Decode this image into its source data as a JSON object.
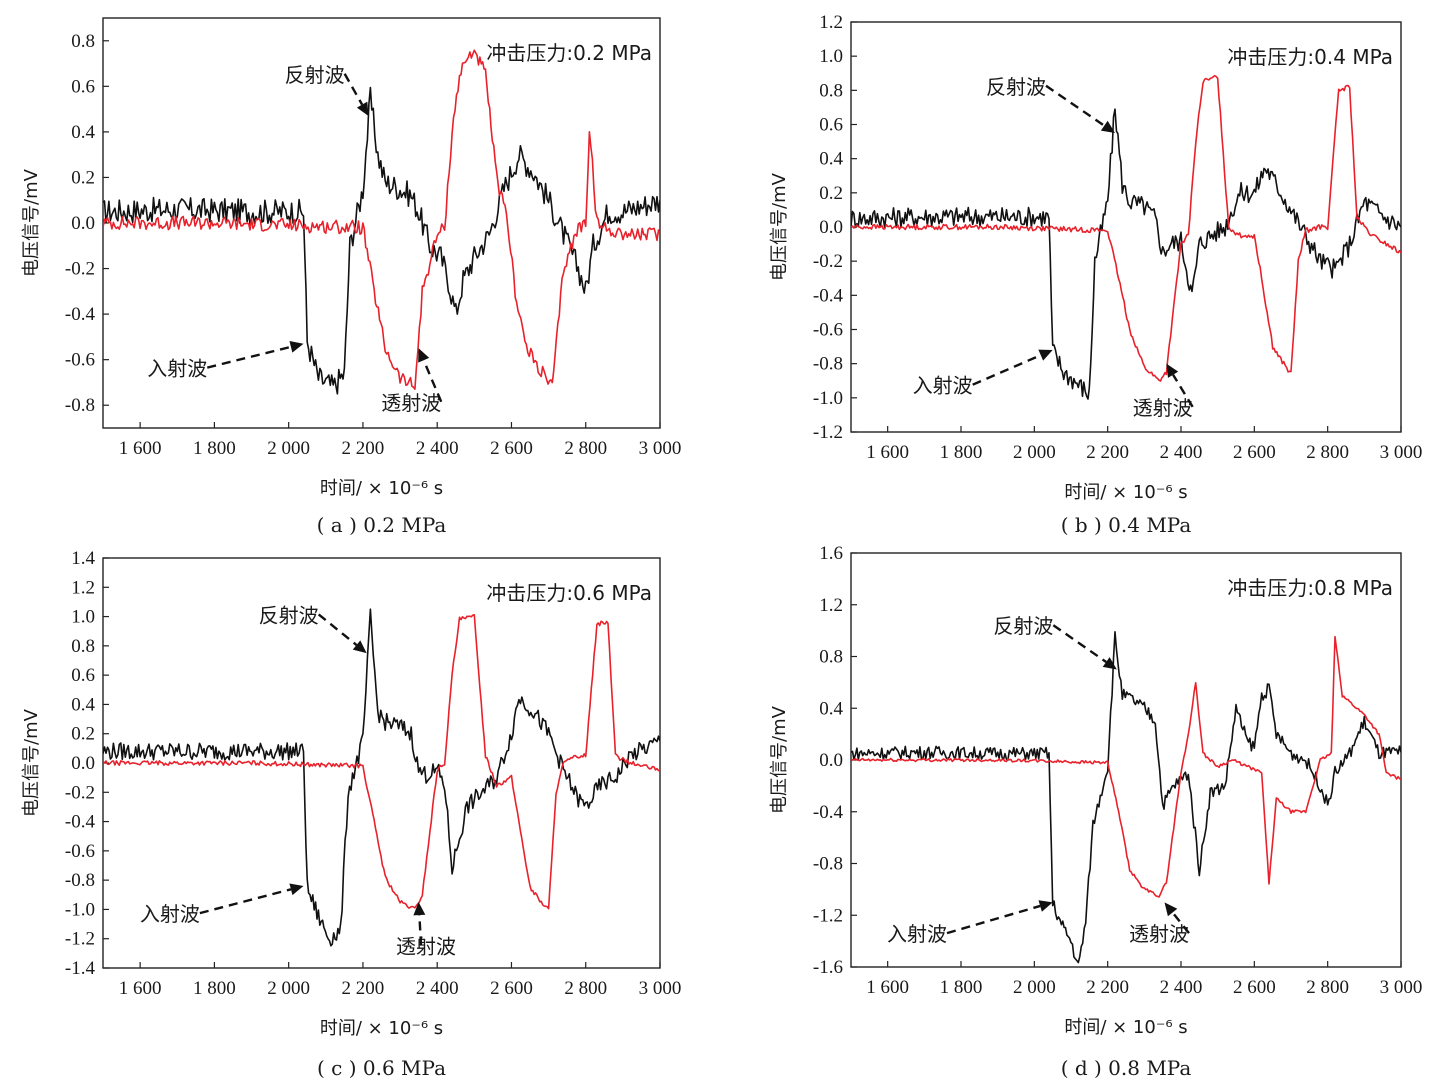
{
  "colors": {
    "reflected_black": "#111111",
    "transmitted_red": "#e8212b",
    "frame": "#222222"
  },
  "chart_data": [
    {
      "type": "line",
      "caption": "( a ) 0.2 MPa",
      "pressure_label": "冲击压力:0.2 MPa",
      "xlabel": "时间/ × 10⁻⁶ s",
      "ylabel": "电压信号/mV",
      "xlim": [
        1500,
        3000
      ],
      "ylim": [
        -0.9,
        0.9
      ],
      "x_ticks": [
        1600,
        1800,
        2000,
        2200,
        2400,
        2600,
        2800,
        3000
      ],
      "x_tick_labels": [
        "1 600",
        "1 800",
        "2 000",
        "2 200",
        "2 400",
        "2 600",
        "2 800",
        "3 000"
      ],
      "y_ticks": [
        -0.8,
        -0.6,
        -0.4,
        -0.2,
        0.0,
        0.2,
        0.4,
        0.6,
        0.8
      ],
      "y_tick_labels": [
        "-0.8",
        "-0.6",
        "-0.4",
        "-0.2",
        "0.0",
        "0.2",
        "0.4",
        "0.6",
        "0.8"
      ],
      "annotations": [
        {
          "text": "反射波",
          "tx": 2070,
          "ty": 0.62,
          "ax": 2215,
          "ay": 0.47
        },
        {
          "text": "入射波",
          "tx": 1700,
          "ty": -0.67,
          "ax": 2040,
          "ay": -0.53
        },
        {
          "text": "透射波",
          "tx": 2330,
          "ty": -0.82,
          "ax": 2350,
          "ay": -0.55
        }
      ],
      "series": [
        {
          "color": "black",
          "x": [
            1500,
            1700,
            1900,
            2040,
            2050,
            2080,
            2120,
            2150,
            2165,
            2200,
            2220,
            2240,
            2260,
            2300,
            2330,
            2350,
            2380,
            2410,
            2430,
            2450,
            2470,
            2500,
            2540,
            2580,
            2620,
            2660,
            2700,
            2740,
            2780,
            2800,
            2820,
            2860,
            2900,
            2960,
            3000
          ],
          "y": [
            0.05,
            0.06,
            0.05,
            0.05,
            -0.52,
            -0.68,
            -0.72,
            -0.66,
            -0.1,
            0.15,
            0.55,
            0.3,
            0.18,
            0.15,
            0.12,
            0.05,
            -0.1,
            -0.15,
            -0.25,
            -0.4,
            -0.25,
            -0.15,
            -0.05,
            0.15,
            0.3,
            0.22,
            0.1,
            -0.05,
            -0.2,
            -0.3,
            -0.1,
            0.05,
            0.05,
            0.08,
            0.1
          ]
        },
        {
          "color": "red",
          "x": [
            1500,
            1800,
            2200,
            2230,
            2260,
            2300,
            2340,
            2360,
            2400,
            2420,
            2440,
            2460,
            2480,
            2500,
            2530,
            2560,
            2590,
            2610,
            2640,
            2680,
            2710,
            2740,
            2780,
            2800,
            2810,
            2830,
            2860,
            2920,
            3000
          ],
          "y": [
            0.0,
            0.0,
            -0.02,
            -0.3,
            -0.55,
            -0.68,
            -0.72,
            -0.3,
            -0.05,
            -0.02,
            0.4,
            0.65,
            0.72,
            0.76,
            0.65,
            0.2,
            0.0,
            -0.3,
            -0.55,
            -0.65,
            -0.72,
            -0.2,
            -0.02,
            0.0,
            0.42,
            0.0,
            -0.03,
            -0.05,
            -0.05
          ]
        }
      ]
    },
    {
      "type": "line",
      "caption": "( b ) 0.4 MPa",
      "pressure_label": "冲击压力:0.4 MPa",
      "xlabel": "时间/ × 10⁻⁶ s",
      "ylabel": "电压信号/mV",
      "xlim": [
        1500,
        3000
      ],
      "ylim": [
        -1.2,
        1.2
      ],
      "x_ticks": [
        1600,
        1800,
        2000,
        2200,
        2400,
        2600,
        2800,
        3000
      ],
      "x_tick_labels": [
        "1 600",
        "1 800",
        "2 000",
        "2 200",
        "2 400",
        "2 600",
        "2 800",
        "3 000"
      ],
      "y_ticks": [
        -1.2,
        -1.0,
        -0.8,
        -0.6,
        -0.4,
        -0.2,
        0.0,
        0.2,
        0.4,
        0.6,
        0.8,
        1.0,
        1.2
      ],
      "y_tick_labels": [
        "-1.2",
        "-1.0",
        "-0.8",
        "-0.6",
        "-0.4",
        "-0.2",
        "0.0",
        "0.2",
        "0.4",
        "0.6",
        "0.8",
        "1.0",
        "1.2"
      ],
      "annotations": [
        {
          "text": "反射波",
          "tx": 1950,
          "ty": 0.78,
          "ax": 2220,
          "ay": 0.55
        },
        {
          "text": "入射波",
          "tx": 1750,
          "ty": -0.97,
          "ax": 2050,
          "ay": -0.72
        },
        {
          "text": "透射波",
          "tx": 2350,
          "ty": -1.1,
          "ax": 2360,
          "ay": -0.8
        }
      ],
      "series": [
        {
          "color": "black",
          "x": [
            1500,
            1700,
            1900,
            2040,
            2050,
            2080,
            2120,
            2150,
            2165,
            2200,
            2220,
            2240,
            2260,
            2300,
            2330,
            2350,
            2370,
            2400,
            2430,
            2450,
            2480,
            2520,
            2560,
            2600,
            2630,
            2660,
            2700,
            2740,
            2780,
            2820,
            2860,
            2900,
            2960,
            3000
          ],
          "y": [
            0.05,
            0.06,
            0.06,
            0.06,
            -0.72,
            -0.85,
            -0.92,
            -0.98,
            -0.2,
            0.15,
            0.7,
            0.25,
            0.15,
            0.12,
            0.05,
            -0.15,
            -0.1,
            -0.08,
            -0.4,
            -0.1,
            -0.05,
            0.0,
            0.2,
            0.2,
            0.35,
            0.25,
            0.1,
            -0.05,
            -0.2,
            -0.25,
            -0.1,
            0.15,
            0.05,
            0.0
          ]
        },
        {
          "color": "red",
          "x": [
            1500,
            1900,
            2200,
            2230,
            2260,
            2300,
            2340,
            2360,
            2400,
            2420,
            2440,
            2460,
            2500,
            2530,
            2560,
            2600,
            2620,
            2650,
            2680,
            2700,
            2720,
            2740,
            2780,
            2800,
            2830,
            2860,
            2880,
            2920,
            3000
          ],
          "y": [
            0.0,
            0.0,
            -0.02,
            -0.3,
            -0.6,
            -0.82,
            -0.9,
            -0.85,
            -0.1,
            -0.05,
            0.5,
            0.85,
            0.88,
            0.0,
            -0.05,
            -0.05,
            -0.3,
            -0.7,
            -0.8,
            -0.86,
            -0.2,
            -0.02,
            0.0,
            0.0,
            0.8,
            0.82,
            0.05,
            -0.05,
            -0.15
          ]
        }
      ]
    },
    {
      "type": "line",
      "caption": "( c ) 0.6 MPa",
      "pressure_label": "冲击压力:0.6 MPa",
      "xlabel": "时间/ × 10⁻⁶ s",
      "ylabel": "电压信号/mV",
      "xlim": [
        1500,
        3000
      ],
      "ylim": [
        -1.4,
        1.4
      ],
      "x_ticks": [
        1600,
        1800,
        2000,
        2200,
        2400,
        2600,
        2800,
        3000
      ],
      "x_tick_labels": [
        "1 600",
        "1 800",
        "2 000",
        "2 200",
        "2 400",
        "2 600",
        "2 800",
        "3 000"
      ],
      "y_ticks": [
        -1.4,
        -1.2,
        -1.0,
        -0.8,
        -0.6,
        -0.4,
        -0.2,
        0.0,
        0.2,
        0.4,
        0.6,
        0.8,
        1.0,
        1.2,
        1.4
      ],
      "y_tick_labels": [
        "-1.4",
        "-1.2",
        "-1.0",
        "-0.8",
        "-0.6",
        "-0.4",
        "-0.2",
        "0.0",
        "0.2",
        "0.4",
        "0.6",
        "0.8",
        "1.0",
        "1.2",
        "1.4"
      ],
      "annotations": [
        {
          "text": "反射波",
          "tx": 2000,
          "ty": 0.96,
          "ax": 2210,
          "ay": 0.75
        },
        {
          "text": "入射波",
          "tx": 1680,
          "ty": -1.08,
          "ax": 2040,
          "ay": -0.84
        },
        {
          "text": "透射波",
          "tx": 2370,
          "ty": -1.3,
          "ax": 2350,
          "ay": -0.95
        }
      ],
      "series": [
        {
          "color": "black",
          "x": [
            1500,
            1700,
            1900,
            2040,
            2050,
            2080,
            2110,
            2140,
            2160,
            2200,
            2220,
            2240,
            2260,
            2300,
            2330,
            2350,
            2370,
            2400,
            2420,
            2440,
            2480,
            2520,
            2560,
            2600,
            2620,
            2660,
            2700,
            2740,
            2780,
            2800,
            2840,
            2880,
            2920,
            2960,
            3000
          ],
          "y": [
            0.08,
            0.08,
            0.08,
            0.08,
            -0.85,
            -1.05,
            -1.2,
            -1.15,
            -0.2,
            0.15,
            1.0,
            0.35,
            0.28,
            0.25,
            0.2,
            -0.05,
            -0.08,
            -0.05,
            -0.15,
            -0.72,
            -0.3,
            -0.2,
            -0.1,
            0.2,
            0.45,
            0.35,
            0.2,
            -0.05,
            -0.25,
            -0.3,
            -0.15,
            -0.1,
            0.05,
            0.1,
            0.15
          ]
        },
        {
          "color": "red",
          "x": [
            1500,
            1900,
            2200,
            2230,
            2260,
            2300,
            2340,
            2360,
            2400,
            2420,
            2440,
            2460,
            2500,
            2530,
            2560,
            2600,
            2620,
            2650,
            2680,
            2700,
            2720,
            2740,
            2780,
            2800,
            2830,
            2860,
            2880,
            2920,
            3000
          ],
          "y": [
            0.0,
            0.0,
            -0.02,
            -0.4,
            -0.78,
            -0.95,
            -1.0,
            -0.9,
            -0.05,
            0.0,
            0.6,
            0.98,
            1.0,
            0.05,
            -0.15,
            -0.1,
            -0.4,
            -0.85,
            -0.95,
            -1.0,
            -0.2,
            0.0,
            0.05,
            0.05,
            0.95,
            0.96,
            0.05,
            0.0,
            -0.05
          ]
        }
      ]
    },
    {
      "type": "line",
      "caption": "( d ) 0.8 MPa",
      "pressure_label": "冲击压力:0.8 MPa",
      "xlabel": "时间/ × 10⁻⁶ s",
      "ylabel": "电压信号/mV",
      "xlim": [
        1500,
        3000
      ],
      "ylim": [
        -1.6,
        1.6
      ],
      "x_ticks": [
        1600,
        1800,
        2000,
        2200,
        2400,
        2600,
        2800,
        3000
      ],
      "x_tick_labels": [
        "1 600",
        "1 800",
        "2 000",
        "2 200",
        "2 400",
        "2 600",
        "2 800",
        "3 000"
      ],
      "y_ticks": [
        -1.6,
        -1.2,
        -0.8,
        -0.4,
        0.0,
        0.4,
        0.8,
        1.2,
        1.6
      ],
      "y_tick_labels": [
        "-1.6",
        "-1.2",
        "-0.8",
        "-0.4",
        "0.0",
        "0.4",
        "0.8",
        "1.2",
        "1.6"
      ],
      "annotations": [
        {
          "text": "反射波",
          "tx": 1970,
          "ty": 0.98,
          "ax": 2225,
          "ay": 0.7
        },
        {
          "text": "入射波",
          "tx": 1680,
          "ty": -1.4,
          "ax": 2050,
          "ay": -1.1
        },
        {
          "text": "透射波",
          "tx": 2340,
          "ty": -1.4,
          "ax": 2355,
          "ay": -1.1
        }
      ],
      "series": [
        {
          "color": "black",
          "x": [
            1500,
            1700,
            1900,
            2040,
            2050,
            2070,
            2100,
            2120,
            2140,
            2160,
            2200,
            2220,
            2240,
            2260,
            2300,
            2330,
            2350,
            2380,
            2420,
            2450,
            2480,
            2520,
            2550,
            2580,
            2600,
            2620,
            2640,
            2660,
            2700,
            2740,
            2780,
            2800,
            2820,
            2860,
            2900,
            2940,
            3000
          ],
          "y": [
            0.05,
            0.06,
            0.05,
            0.05,
            -1.1,
            -1.25,
            -1.4,
            -1.6,
            -1.25,
            -0.5,
            -0.05,
            0.95,
            0.5,
            0.48,
            0.4,
            0.3,
            -0.35,
            -0.2,
            -0.1,
            -0.85,
            -0.25,
            -0.2,
            0.4,
            0.15,
            0.1,
            0.5,
            0.55,
            0.2,
            0.05,
            0.0,
            -0.2,
            -0.35,
            -0.1,
            0.05,
            0.3,
            0.05,
            0.06
          ]
        },
        {
          "color": "red",
          "x": [
            1500,
            1900,
            2200,
            2230,
            2260,
            2300,
            2340,
            2360,
            2400,
            2420,
            2440,
            2460,
            2500,
            2540,
            2580,
            2620,
            2640,
            2660,
            2700,
            2740,
            2780,
            2810,
            2820,
            2840,
            2860,
            2900,
            2940,
            2960,
            3000
          ],
          "y": [
            0.0,
            0.0,
            -0.02,
            -0.4,
            -0.85,
            -1.0,
            -1.05,
            -0.95,
            -0.1,
            0.2,
            0.6,
            0.05,
            -0.05,
            0.0,
            -0.05,
            -0.1,
            -0.95,
            -0.3,
            -0.4,
            -0.4,
            0.0,
            0.05,
            0.95,
            0.5,
            0.45,
            0.35,
            0.2,
            -0.1,
            -0.15
          ]
        }
      ]
    }
  ]
}
